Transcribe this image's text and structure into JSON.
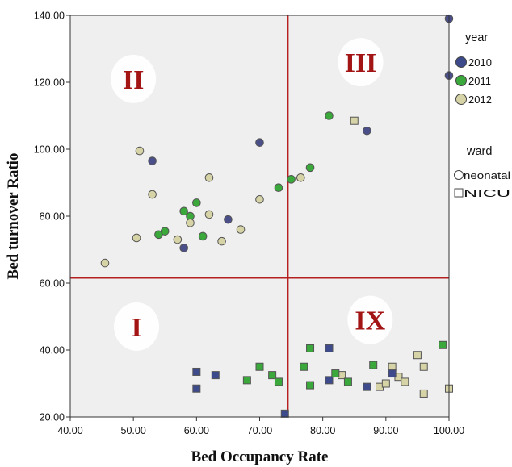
{
  "chart_data": {
    "type": "scatter",
    "xlabel": "Bed Occupancy Rate",
    "ylabel": "Bed turnover Ratio",
    "xlim": [
      40,
      100
    ],
    "ylim": [
      20,
      140
    ],
    "xticks": [
      "40.00",
      "50.00",
      "60.00",
      "70.00",
      "80.00",
      "90.00",
      "100.00"
    ],
    "yticks": [
      "20.00",
      "40.00",
      "60.00",
      "80.00",
      "100.00",
      "120.00",
      "140.00"
    ],
    "grid": false,
    "reference_lines": {
      "x": 74.5,
      "y": 61.5,
      "color": "#b52020"
    },
    "quadrants": [
      {
        "label": "II",
        "x": 50,
        "y": 121
      },
      {
        "label": "III",
        "x": 86,
        "y": 126
      },
      {
        "label": "I",
        "x": 50.5,
        "y": 47
      },
      {
        "label": "IX",
        "x": 87.5,
        "y": 49
      }
    ],
    "legend": {
      "placement": "right",
      "color_title": "year",
      "shape_title": "ward",
      "colors": [
        {
          "name": "2010",
          "color": "#3d4a8c"
        },
        {
          "name": "2011",
          "color": "#3aa83a"
        },
        {
          "name": "2012",
          "color": "#d6d3a6"
        }
      ],
      "shapes": [
        {
          "name": "neonatal",
          "shape": "circle"
        },
        {
          "name": "NICU",
          "shape": "square"
        }
      ]
    },
    "series": [
      {
        "year": "2010",
        "ward": "neonatal",
        "color": "#4a4f8a",
        "marker": "circle",
        "points": [
          [
            53,
            96.5
          ],
          [
            58,
            70.5
          ],
          [
            65,
            79
          ],
          [
            70,
            102
          ],
          [
            87,
            105.5
          ],
          [
            100,
            122
          ],
          [
            100,
            139
          ]
        ]
      },
      {
        "year": "2011",
        "ward": "neonatal",
        "color": "#3aa83a",
        "marker": "circle",
        "points": [
          [
            54,
            74.5
          ],
          [
            55,
            75.5
          ],
          [
            58,
            81.5
          ],
          [
            59,
            80
          ],
          [
            60,
            84
          ],
          [
            61,
            74
          ],
          [
            73,
            88.5
          ],
          [
            75,
            91
          ],
          [
            78,
            94.5
          ],
          [
            81,
            110
          ]
        ]
      },
      {
        "year": "2012",
        "ward": "neonatal",
        "color": "#d6d3a6",
        "marker": "circle",
        "points": [
          [
            45.5,
            66
          ],
          [
            50.5,
            73.5
          ],
          [
            51,
            99.5
          ],
          [
            53,
            86.5
          ],
          [
            57,
            73
          ],
          [
            59,
            78
          ],
          [
            62,
            91.5
          ],
          [
            62,
            80.5
          ],
          [
            64,
            72.5
          ],
          [
            67,
            76
          ],
          [
            70,
            85
          ],
          [
            76.5,
            91.5
          ]
        ]
      },
      {
        "year": "2012",
        "ward": "NICU",
        "color": "#d6d3a6",
        "marker": "square",
        "points": [
          [
            85,
            108.5
          ],
          [
            83,
            32.5
          ],
          [
            89,
            29
          ],
          [
            90,
            30
          ],
          [
            91,
            35
          ],
          [
            92,
            32
          ],
          [
            93,
            30.5
          ],
          [
            95,
            38.5
          ],
          [
            96,
            27
          ],
          [
            96,
            35
          ],
          [
            100,
            28.5
          ]
        ]
      },
      {
        "year": "2010",
        "ward": "NICU",
        "color": "#3d4a8c",
        "marker": "square",
        "points": [
          [
            60,
            33.5
          ],
          [
            60,
            28.5
          ],
          [
            63,
            32.5
          ],
          [
            74,
            21
          ],
          [
            81,
            40.5
          ],
          [
            81,
            31
          ],
          [
            87,
            29
          ],
          [
            91,
            33
          ]
        ]
      },
      {
        "year": "2011",
        "ward": "NICU",
        "color": "#3aa83a",
        "marker": "square",
        "points": [
          [
            68,
            31
          ],
          [
            70,
            35
          ],
          [
            72,
            32.5
          ],
          [
            73,
            30.5
          ],
          [
            77,
            35
          ],
          [
            78,
            40.5
          ],
          [
            78,
            29.5
          ],
          [
            82,
            33
          ],
          [
            84,
            30.5
          ],
          [
            88,
            35.5
          ],
          [
            99,
            41.5
          ]
        ]
      }
    ]
  }
}
